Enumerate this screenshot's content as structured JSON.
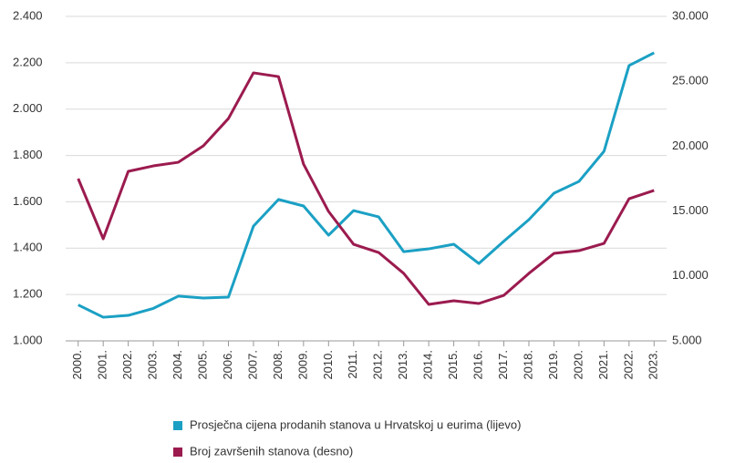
{
  "chart_data": {
    "type": "line",
    "categories": [
      "2000.",
      "2001.",
      "2002.",
      "2003.",
      "2004.",
      "2005.",
      "2006.",
      "2007.",
      "2008.",
      "2009.",
      "2010.",
      "2011.",
      "2012.",
      "2013.",
      "2014.",
      "2015.",
      "2016.",
      "2017.",
      "2018.",
      "2019.",
      "2020.",
      "2021.",
      "2022.",
      "2023."
    ],
    "series": [
      {
        "name": "Prosječna cijena prodanih stanova u Hrvatskoj u eurima (lijevo)",
        "color": "#1ba0c4",
        "values": [
          1155,
          1102,
          1110,
          1140,
          1193,
          1185,
          1189,
          1495,
          1610,
          1582,
          1456,
          1562,
          1535,
          1385,
          1397,
          1417,
          1334,
          1430,
          1523,
          1637,
          1688,
          1818,
          2188,
          2243
        ]
      },
      {
        "name": "Broj završenih stanova (desno)",
        "color": "#9b1b4f",
        "axis": "y2",
        "values": [
          17500,
          12865,
          18060,
          18480,
          18760,
          20030,
          22130,
          25650,
          25360,
          18620,
          14970,
          12440,
          11810,
          10200,
          7810,
          8090,
          7880,
          8510,
          10200,
          11740,
          11950,
          12510,
          15950,
          16590
        ]
      }
    ],
    "ylim": [
      1000,
      2400
    ],
    "yticks": [
      {
        "value": 1000,
        "label": "1.000"
      },
      {
        "value": 1200,
        "label": "1.200"
      },
      {
        "value": 1400,
        "label": "1.400"
      },
      {
        "value": 1600,
        "label": "1.600"
      },
      {
        "value": 1800,
        "label": "1.800"
      },
      {
        "value": 2000,
        "label": "2.000"
      },
      {
        "value": 2200,
        "label": "2.200"
      },
      {
        "value": 2400,
        "label": "2.400"
      }
    ],
    "y2lim": [
      5000,
      30000
    ],
    "y2ticks": [
      {
        "value": 5000,
        "label": "5.000"
      },
      {
        "value": 10000,
        "label": "10.000"
      },
      {
        "value": 15000,
        "label": "15.000"
      },
      {
        "value": 20000,
        "label": "20.000"
      },
      {
        "value": 25000,
        "label": "25.000"
      },
      {
        "value": 30000,
        "label": "30.000"
      }
    ],
    "grid": true,
    "legend": "bottom"
  }
}
